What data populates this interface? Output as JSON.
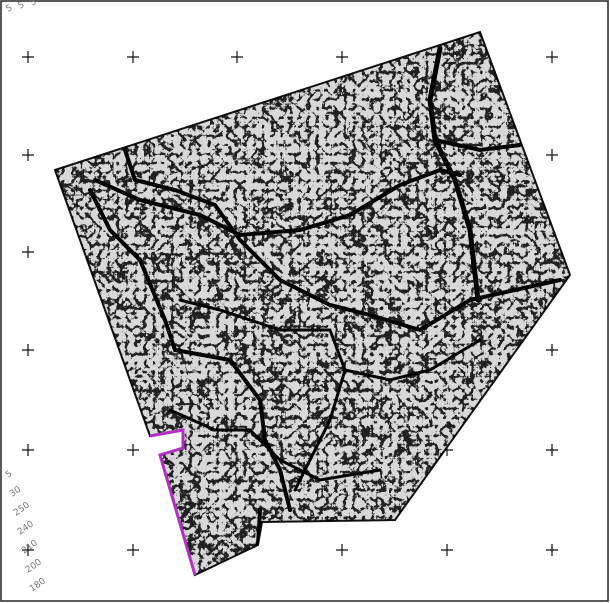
{
  "map": {
    "edge_labels": [
      "5",
      "5",
      "5"
    ],
    "axis_labels": [
      "5",
      "30",
      "250",
      "240",
      "210",
      "200",
      "180"
    ]
  }
}
